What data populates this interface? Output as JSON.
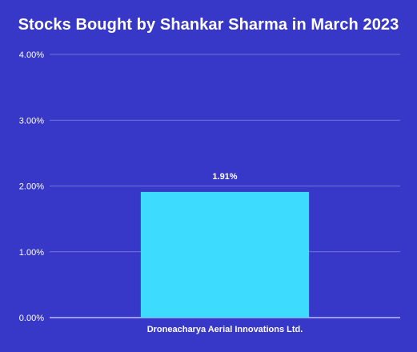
{
  "chart_data": {
    "type": "bar",
    "title": "Stocks Bought by Shankar Sharma in March 2023",
    "categories": [
      "Droneacharya Aerial Innovations Ltd."
    ],
    "values": [
      1.91
    ],
    "data_labels": [
      "1.91%"
    ],
    "yticks": [
      "0.00%",
      "1.00%",
      "2.00%",
      "3.00%",
      "4.00%"
    ],
    "ylim": [
      0,
      4
    ],
    "xlabel": "",
    "ylabel": "",
    "grid": true,
    "legend": "none",
    "colors": {
      "background": "#3838c8",
      "bar": "#3ddcff",
      "grid": "#8585e0",
      "text": "#ffffff"
    }
  }
}
